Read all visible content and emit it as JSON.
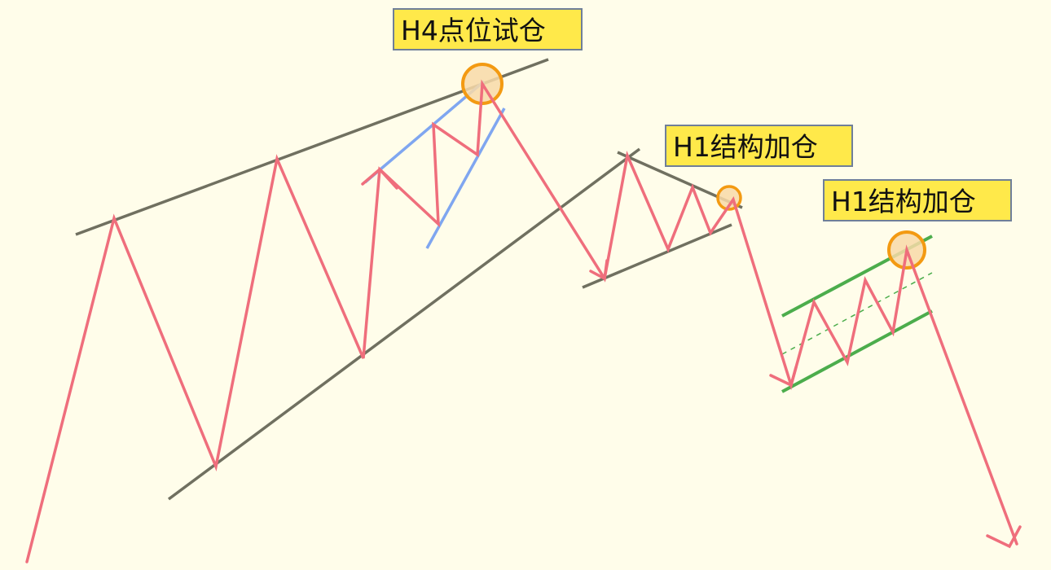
{
  "callouts": [
    {
      "text": "H4点位试仓"
    },
    {
      "text": "H1结构加仓"
    },
    {
      "text": "H1结构加仓"
    }
  ],
  "colors": {
    "background": "#fffdea",
    "price_path": "#ef6e7c",
    "trendline": "#707060",
    "h4_channel": "#7fa6f0",
    "h1_channel": "#4cad4c",
    "entry_marker_stroke": "#f39a12",
    "entry_marker_fill": "#f8d9a8",
    "callout_fill": "#ffe94a",
    "callout_border": "#6f7f99"
  },
  "icons": [
    "entry-circle-icon",
    "down-arrow-icon"
  ]
}
